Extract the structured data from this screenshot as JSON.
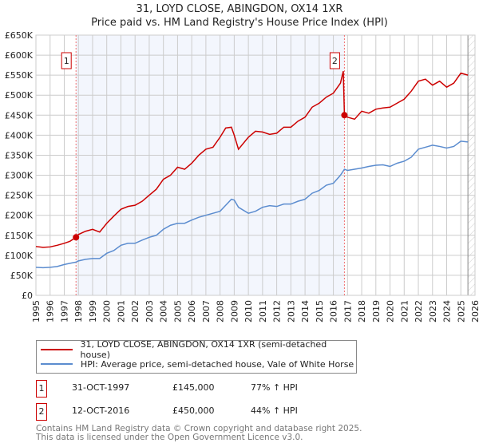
{
  "chart_data": {
    "type": "line",
    "title": "31, LOYD CLOSE, ABINGDON, OX14 1XR",
    "subtitle": "Price paid vs. HM Land Registry's House Price Index (HPI)",
    "xlim": [
      1995,
      2026
    ],
    "ylim": [
      0,
      650000
    ],
    "x_ticks": [
      "1995",
      "1996",
      "1997",
      "1998",
      "1999",
      "2000",
      "2001",
      "2002",
      "2003",
      "2004",
      "2005",
      "2006",
      "2007",
      "2008",
      "2009",
      "2010",
      "2011",
      "2012",
      "2013",
      "2014",
      "2015",
      "2016",
      "2017",
      "2018",
      "2019",
      "2020",
      "2021",
      "2022",
      "2023",
      "2024",
      "2025",
      "2026"
    ],
    "y_ticks": [
      "£0",
      "£50K",
      "£100K",
      "£150K",
      "£200K",
      "£250K",
      "£300K",
      "£350K",
      "£400K",
      "£450K",
      "£500K",
      "£550K",
      "£600K",
      "£650K"
    ],
    "grid": true,
    "series": [
      {
        "name": "31, LOYD CLOSE, ABINGDON, OX14 1XR (semi-detached house)",
        "color": "#cc0000",
        "x": [
          1995,
          1995.5,
          1996,
          1996.5,
          1997,
          1997.4,
          1997.83,
          1998,
          1998.5,
          1999,
          1999.5,
          2000,
          2000.5,
          2001,
          2001.5,
          2002,
          2002.5,
          2003,
          2003.5,
          2004,
          2004.5,
          2005,
          2005.5,
          2006,
          2006.5,
          2007,
          2007.5,
          2008,
          2008.4,
          2008.8,
          2009,
          2009.3,
          2010,
          2010.5,
          2011,
          2011.5,
          2012,
          2012.5,
          2013,
          2013.5,
          2014,
          2014.5,
          2015,
          2015.5,
          2016,
          2016.5,
          2016.7,
          2016.78,
          2017,
          2017.5,
          2018,
          2018.5,
          2019,
          2019.5,
          2020,
          2020.5,
          2021,
          2021.5,
          2022,
          2022.5,
          2023,
          2023.5,
          2024,
          2024.5,
          2025,
          2025.5
        ],
        "y": [
          122000,
          120000,
          121000,
          125000,
          130000,
          135000,
          145000,
          152000,
          160000,
          165000,
          158000,
          180000,
          198000,
          215000,
          222000,
          225000,
          235000,
          250000,
          265000,
          290000,
          300000,
          320000,
          315000,
          330000,
          350000,
          365000,
          370000,
          395000,
          418000,
          420000,
          400000,
          365000,
          395000,
          410000,
          408000,
          402000,
          405000,
          420000,
          420000,
          435000,
          445000,
          470000,
          480000,
          495000,
          505000,
          530000,
          560000,
          450000,
          445000,
          440000,
          460000,
          455000,
          465000,
          468000,
          470000,
          480000,
          490000,
          510000,
          535000,
          540000,
          525000,
          535000,
          520000,
          530000,
          555000,
          550000
        ]
      },
      {
        "name": "HPI: Average price, semi-detached house, Vale of White Horse",
        "color": "#5b8ccf",
        "x": [
          1995,
          1995.5,
          1996,
          1996.5,
          1997,
          1997.4,
          1997.83,
          1998,
          1998.5,
          1999,
          1999.5,
          2000,
          2000.5,
          2001,
          2001.5,
          2002,
          2002.5,
          2003,
          2003.5,
          2004,
          2004.5,
          2005,
          2005.5,
          2006,
          2006.5,
          2007,
          2007.5,
          2008,
          2008.4,
          2008.8,
          2009,
          2009.3,
          2010,
          2010.5,
          2011,
          2011.5,
          2012,
          2012.5,
          2013,
          2013.5,
          2014,
          2014.5,
          2015,
          2015.5,
          2016,
          2016.5,
          2016.78,
          2017,
          2017.5,
          2018,
          2018.5,
          2019,
          2019.5,
          2020,
          2020.5,
          2021,
          2021.5,
          2022,
          2022.5,
          2023,
          2023.5,
          2024,
          2024.5,
          2025,
          2025.5
        ],
        "y": [
          70000,
          69000,
          70000,
          72000,
          77000,
          80000,
          83000,
          86000,
          90000,
          92000,
          92000,
          105000,
          112000,
          125000,
          130000,
          130000,
          138000,
          145000,
          150000,
          165000,
          175000,
          180000,
          180000,
          188000,
          195000,
          200000,
          205000,
          210000,
          225000,
          240000,
          238000,
          220000,
          205000,
          210000,
          220000,
          224000,
          222000,
          228000,
          228000,
          235000,
          240000,
          255000,
          262000,
          275000,
          280000,
          300000,
          315000,
          312000,
          315000,
          318000,
          322000,
          325000,
          326000,
          322000,
          330000,
          335000,
          345000,
          365000,
          370000,
          375000,
          372000,
          368000,
          372000,
          385000,
          383000
        ]
      }
    ],
    "annotations": [
      {
        "label": "1",
        "x": 1997.83,
        "y": 145000
      },
      {
        "label": "2",
        "x": 2016.78,
        "y": 450000
      }
    ],
    "shaded_range": [
      1997.83,
      2016.78
    ],
    "hatched_from": 2025.5
  },
  "legend": [
    {
      "label": "31, LOYD CLOSE, ABINGDON, OX14 1XR (semi-detached house)",
      "color": "#cc0000"
    },
    {
      "label": "HPI: Average price, semi-detached house, Vale of White Horse",
      "color": "#5b8ccf"
    }
  ],
  "transactions": [
    {
      "num": "1",
      "date": "31-OCT-1997",
      "price": "£145,000",
      "hpi": "77% ↑ HPI"
    },
    {
      "num": "2",
      "date": "12-OCT-2016",
      "price": "£450,000",
      "hpi": "44% ↑ HPI"
    }
  ],
  "footer": {
    "line1": "Contains HM Land Registry data © Crown copyright and database right 2025.",
    "line2": "This data is licensed under the Open Government Licence v3.0."
  }
}
